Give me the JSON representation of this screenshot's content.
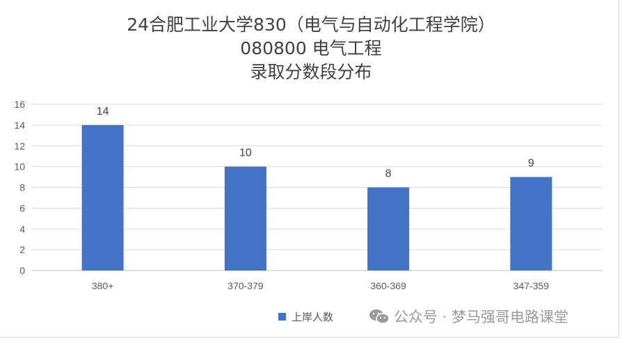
{
  "chart_data": {
    "type": "bar",
    "title_lines": [
      "24合肥工业大学830（电气与自动化工程学院）",
      "080800 电气工程",
      "录取分数段分布"
    ],
    "categories": [
      "380+",
      "370-379",
      "360-369",
      "347-359"
    ],
    "series": [
      {
        "name": "上岸人数",
        "values": [
          14,
          10,
          8,
          9
        ],
        "color": "#4472c4"
      }
    ],
    "data_labels": [
      "14",
      "10",
      "8",
      "9"
    ],
    "ylim": [
      0,
      16
    ],
    "yticks": [
      "0",
      "2",
      "4",
      "6",
      "8",
      "10",
      "12",
      "14",
      "16"
    ],
    "grid": true,
    "legend_position": "bottom"
  },
  "watermark": {
    "text": "公众号 · 梦马强哥电路课堂",
    "icon": "wechat-icon"
  }
}
